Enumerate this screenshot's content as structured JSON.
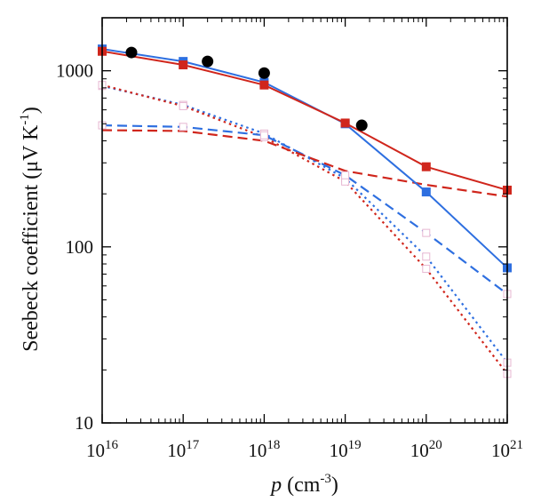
{
  "chart_data": {
    "type": "line",
    "xscale": "log",
    "yscale": "log",
    "xlim": [
      1e+16,
      1e+21
    ],
    "ylim": [
      10,
      2000
    ],
    "xlabel": {
      "main": "p",
      "unit_open": " (cm",
      "sup": "-3",
      "unit_close": ")"
    },
    "ylabel": {
      "main": "Seebeck coefficient (μV K",
      "sup": "-1",
      "close": ")"
    },
    "x_ticks": [
      {
        "value": 1e+16,
        "base": "10",
        "exp": "16"
      },
      {
        "value": 1e+17,
        "base": "10",
        "exp": "17"
      },
      {
        "value": 1e+18,
        "base": "10",
        "exp": "18"
      },
      {
        "value": 1e+19,
        "base": "10",
        "exp": "19"
      },
      {
        "value": 1e+20,
        "base": "10",
        "exp": "20"
      },
      {
        "value": 1e+21,
        "base": "10",
        "exp": "21"
      }
    ],
    "y_ticks": [
      {
        "value": 10,
        "label": "10"
      },
      {
        "value": 100,
        "label": "100"
      },
      {
        "value": 1000,
        "label": "1000"
      }
    ],
    "grid": false,
    "legend": "none",
    "series": [
      {
        "name": "blue-solid-squares",
        "color": "#2E6FE0",
        "line": "solid",
        "marker": "filled-square",
        "x": [
          1e+16,
          1e+17,
          1e+18,
          1e+19,
          1e+20,
          1e+21
        ],
        "y": [
          1330,
          1130,
          860,
          500,
          205,
          76
        ]
      },
      {
        "name": "red-solid-squares",
        "color": "#D0261C",
        "line": "solid",
        "marker": "filled-square",
        "x": [
          1e+16,
          1e+17,
          1e+18,
          1e+19,
          1e+20,
          1e+21
        ],
        "y": [
          1290,
          1080,
          830,
          505,
          285,
          210
        ]
      },
      {
        "name": "black-circles-experiment",
        "color": "#000000",
        "line": "none",
        "marker": "filled-circle",
        "x": [
          2.3e+16,
          2e+17,
          1e+18,
          1.6e+19
        ],
        "y": [
          1270,
          1130,
          970,
          490
        ]
      },
      {
        "name": "blue-dotted",
        "color": "#2E6FE0",
        "line": "dotted",
        "marker": "open-square",
        "x": [
          1e+16,
          1e+17,
          1e+18,
          1e+19,
          1e+20,
          1e+21
        ],
        "y": [
          820,
          640,
          440,
          245,
          88,
          22
        ]
      },
      {
        "name": "red-dotted",
        "color": "#D0261C",
        "line": "dotted",
        "marker": "open-square",
        "x": [
          1e+16,
          1e+17,
          1e+18,
          1e+19,
          1e+20,
          1e+21
        ],
        "y": [
          830,
          630,
          420,
          235,
          75,
          19
        ]
      },
      {
        "name": "blue-dashed",
        "color": "#2E6FE0",
        "line": "dashed",
        "marker": "open-square",
        "x": [
          1e+16,
          1e+17,
          1e+18,
          1e+19,
          1e+20,
          1e+21
        ],
        "y": [
          490,
          480,
          430,
          255,
          120,
          54
        ]
      },
      {
        "name": "red-dashed",
        "color": "#D0261C",
        "line": "dashed",
        "marker": "none",
        "x": [
          1e+16,
          1e+17,
          1e+18,
          1e+19,
          1e+20,
          1e+21
        ],
        "y": [
          460,
          455,
          400,
          270,
          225,
          193
        ]
      }
    ]
  }
}
